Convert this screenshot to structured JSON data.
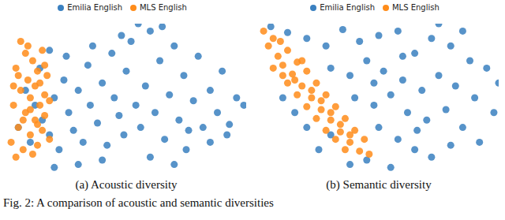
{
  "caption": "Fig. 2: A comparison of acoustic and semantic diversities",
  "chart_data": [
    {
      "type": "scatter",
      "title": "(a) Acoustic diversity",
      "xlim": [
        0,
        100
      ],
      "ylim": [
        0,
        100
      ],
      "tick_labels": false,
      "legend": "top",
      "series": [
        {
          "name": "Emilia English",
          "color": "#3a80c0",
          "x": [
            5,
            8,
            10,
            12,
            14,
            15,
            18,
            20,
            22,
            24,
            26,
            28,
            30,
            32,
            34,
            35,
            38,
            40,
            42,
            44,
            45,
            47,
            49,
            50,
            52,
            54,
            56,
            58,
            60,
            62,
            64,
            66,
            68,
            70,
            72,
            74,
            76,
            78,
            80,
            82,
            85,
            88,
            90,
            93,
            96,
            99,
            55,
            48,
            65,
            36,
            25,
            18,
            60,
            40,
            30,
            20,
            75,
            85,
            92,
            70
          ],
          "y": [
            30,
            55,
            20,
            45,
            70,
            35,
            25,
            50,
            15,
            62,
            40,
            28,
            55,
            20,
            72,
            45,
            33,
            60,
            18,
            80,
            50,
            38,
            25,
            68,
            88,
            45,
            30,
            58,
            95,
            40,
            75,
            22,
            52,
            85,
            35,
            65,
            28,
            48,
            78,
            30,
            55,
            40,
            68,
            32,
            50,
            45,
            100,
            92,
            98,
            85,
            78,
            82,
            10,
            8,
            5,
            3,
            15,
            20,
            25,
            5
          ]
        },
        {
          "name": "MLS English",
          "color": "#ff8c1a",
          "x": [
            2,
            3,
            4,
            5,
            6,
            7,
            8,
            8,
            9,
            10,
            10,
            11,
            12,
            12,
            13,
            13,
            14,
            15,
            15,
            16,
            16,
            17,
            18,
            18,
            4,
            6,
            11,
            9,
            14,
            3,
            7,
            10,
            13,
            5,
            16
          ],
          "y": [
            20,
            45,
            70,
            30,
            55,
            15,
            80,
            40,
            62,
            25,
            50,
            75,
            35,
            58,
            18,
            68,
            45,
            28,
            82,
            52,
            38,
            65,
            22,
            48,
            10,
            88,
            12,
            85,
            60,
            58,
            35,
            42,
            32,
            65,
            72
          ]
        }
      ]
    },
    {
      "type": "scatter",
      "title": "(b) Semantic diversity",
      "xlim": [
        0,
        100
      ],
      "ylim": [
        0,
        100
      ],
      "tick_labels": false,
      "legend": "top",
      "series": [
        {
          "name": "Emilia English",
          "color": "#3a80c0",
          "x": [
            5,
            12,
            20,
            28,
            35,
            42,
            50,
            58,
            65,
            72,
            80,
            88,
            95,
            100,
            30,
            38,
            45,
            52,
            60,
            68,
            75,
            82,
            90,
            98,
            40,
            48,
            55,
            62,
            70,
            78,
            85,
            92,
            50,
            58,
            65,
            72,
            80,
            45,
            38,
            55,
            25,
            30,
            20,
            15,
            10,
            60,
            85,
            75,
            48,
            66
          ],
          "y": [
            98,
            94,
            90,
            85,
            96,
            88,
            92,
            95,
            80,
            90,
            85,
            75,
            70,
            60,
            70,
            65,
            75,
            68,
            62,
            55,
            65,
            58,
            50,
            40,
            50,
            45,
            52,
            40,
            35,
            42,
            30,
            20,
            30,
            22,
            15,
            10,
            18,
            8,
            5,
            3,
            15,
            25,
            30,
            40,
            50,
            78,
            95,
            100,
            60,
            28
          ]
        },
        {
          "name": "MLS English",
          "color": "#ff8c1a",
          "x": [
            2,
            4,
            6,
            8,
            10,
            6,
            12,
            14,
            16,
            12,
            18,
            20,
            16,
            22,
            24,
            20,
            26,
            28,
            24,
            30,
            32,
            28,
            34,
            36,
            32,
            38,
            40,
            36,
            42,
            44,
            10,
            15,
            22,
            30,
            38,
            9,
            18,
            26,
            34,
            46
          ],
          "y": [
            95,
            85,
            90,
            78,
            72,
            70,
            82,
            66,
            74,
            60,
            58,
            68,
            52,
            50,
            60,
            44,
            42,
            52,
            36,
            35,
            44,
            28,
            27,
            36,
            22,
            20,
            28,
            15,
            14,
            22,
            65,
            62,
            55,
            40,
            25,
            88,
            75,
            48,
            32,
            12
          ]
        }
      ]
    }
  ]
}
